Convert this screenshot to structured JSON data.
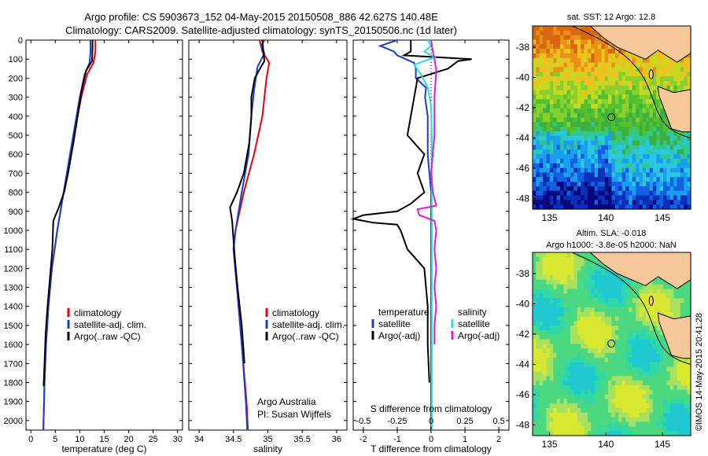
{
  "header": {
    "line1": "Argo profile: CS 5903673_152 04-May-2015 20150508_886 42.627S 140.48E",
    "line2": "Climatology: CARS2009. Satellite-adjusted climatology: synTS_20150506.nc (1d later)"
  },
  "colors": {
    "clim": "#e8000a",
    "sat": "#1a3ccf",
    "argo": "#000000",
    "sat_s": "#22e0e6",
    "argo_s": "#e21ad8"
  },
  "chart_data": [
    {
      "type": "line",
      "panel": "temperature",
      "xlabel": "temperature (deg C)",
      "xlim": [
        -1,
        31
      ],
      "xticks": [
        0,
        5,
        10,
        15,
        20,
        25,
        30
      ],
      "ylim": [
        0,
        2050
      ],
      "yticks": [
        0,
        100,
        200,
        300,
        400,
        500,
        600,
        700,
        800,
        900,
        1000,
        1100,
        1200,
        1300,
        1400,
        1500,
        1600,
        1700,
        1800,
        1900,
        2000
      ],
      "legend": [
        "climatology",
        "satellite-adj. clim.",
        "Argo(..raw -QC)"
      ],
      "series": [
        {
          "name": "climatology",
          "color": "#e8000a",
          "points": [
            [
              13.2,
              0
            ],
            [
              13.2,
              60
            ],
            [
              12.8,
              120
            ],
            [
              11.5,
              180
            ],
            [
              10.3,
              300
            ],
            [
              9.2,
              450
            ],
            [
              8.1,
              600
            ],
            [
              6.7,
              800
            ],
            [
              5.4,
              1000
            ],
            [
              4.3,
              1200
            ],
            [
              3.6,
              1400
            ],
            [
              3.1,
              1600
            ],
            [
              2.8,
              1800
            ],
            [
              2.6,
              2000
            ],
            [
              2.55,
              2050
            ]
          ]
        },
        {
          "name": "satellite-adj. clim.",
          "color": "#1a3ccf",
          "points": [
            [
              12.2,
              0
            ],
            [
              12.2,
              60
            ],
            [
              12.0,
              120
            ],
            [
              11.0,
              180
            ],
            [
              10.0,
              300
            ],
            [
              9.0,
              450
            ],
            [
              8.0,
              600
            ],
            [
              6.7,
              800
            ],
            [
              5.4,
              1000
            ],
            [
              4.3,
              1200
            ],
            [
              3.6,
              1400
            ],
            [
              3.1,
              1600
            ],
            [
              2.8,
              1800
            ],
            [
              2.6,
              2000
            ],
            [
              2.55,
              2050
            ]
          ]
        },
        {
          "name": "Argo(..raw -QC)",
          "color": "#000000",
          "points": [
            [
              12.6,
              0
            ],
            [
              12.6,
              40
            ],
            [
              12.5,
              110
            ],
            [
              11.3,
              160
            ],
            [
              10.4,
              260
            ],
            [
              9.7,
              380
            ],
            [
              8.7,
              540
            ],
            [
              7.6,
              700
            ],
            [
              6.8,
              800
            ],
            [
              5.7,
              880
            ],
            [
              4.6,
              950
            ],
            [
              4.5,
              1020
            ],
            [
              4.4,
              1100
            ],
            [
              3.9,
              1250
            ],
            [
              3.4,
              1400
            ],
            [
              3.0,
              1550
            ],
            [
              2.8,
              1700
            ],
            [
              2.6,
              1820
            ]
          ]
        }
      ],
      "annotations": []
    },
    {
      "type": "line",
      "panel": "salinity",
      "xlabel": "salinity",
      "xlim": [
        33.85,
        36.15
      ],
      "xticks": [
        34,
        34.5,
        35,
        35.5,
        36
      ],
      "ylim": [
        0,
        2050
      ],
      "legend": [
        "climatology",
        "satellite-adj. clim.",
        "Argo(..raw -QC)"
      ],
      "series": [
        {
          "name": "climatology",
          "color": "#e8000a",
          "points": [
            [
              34.88,
              0
            ],
            [
              34.92,
              60
            ],
            [
              35.02,
              120
            ],
            [
              34.98,
              200
            ],
            [
              34.92,
              400
            ],
            [
              34.8,
              600
            ],
            [
              34.65,
              800
            ],
            [
              34.53,
              1000
            ],
            [
              34.5,
              1100
            ],
            [
              34.55,
              1300
            ],
            [
              34.62,
              1600
            ],
            [
              34.69,
              1900
            ],
            [
              34.71,
              2050
            ]
          ]
        },
        {
          "name": "satellite-adj. clim.",
          "color": "#1a3ccf",
          "points": [
            [
              34.95,
              0
            ],
            [
              34.9,
              30
            ],
            [
              34.95,
              70
            ],
            [
              34.85,
              140
            ],
            [
              34.8,
              260
            ],
            [
              34.76,
              400
            ],
            [
              34.72,
              600
            ],
            [
              34.62,
              800
            ],
            [
              34.53,
              1000
            ],
            [
              34.5,
              1100
            ],
            [
              34.55,
              1300
            ],
            [
              34.62,
              1600
            ],
            [
              34.68,
              1900
            ],
            [
              34.7,
              2050
            ]
          ]
        },
        {
          "name": "Argo(..raw -QC)",
          "color": "#000000",
          "points": [
            [
              34.92,
              0
            ],
            [
              34.93,
              40
            ],
            [
              34.95,
              110
            ],
            [
              34.9,
              140
            ],
            [
              34.81,
              200
            ],
            [
              34.76,
              300
            ],
            [
              34.76,
              400
            ],
            [
              34.73,
              540
            ],
            [
              34.65,
              700
            ],
            [
              34.55,
              800
            ],
            [
              34.45,
              880
            ],
            [
              34.48,
              950
            ],
            [
              34.5,
              1050
            ],
            [
              34.52,
              1150
            ],
            [
              34.56,
              1300
            ],
            [
              34.62,
              1500
            ],
            [
              34.66,
              1700
            ]
          ]
        }
      ],
      "annotations": [
        "Argo Australia",
        "PI: Susan Wijffels"
      ]
    },
    {
      "type": "line",
      "panel": "difference",
      "xlabel_top": "S difference from climatology",
      "xticks_top": [
        -0.5,
        -0.25,
        0,
        0.25,
        0.5
      ],
      "xlabel": "T difference from climatology",
      "xlim": [
        -2.3,
        2.3
      ],
      "xticks": [
        -2,
        -1,
        0,
        1,
        2
      ],
      "ylim": [
        0,
        2050
      ],
      "legend_left_title": "temperature",
      "legend_right_title": "salinity",
      "legend": [
        "satellite",
        "Argo(-adj)",
        "satellite",
        "Argo(-adj)"
      ],
      "series": [
        {
          "name": "satellite",
          "group": "temperature",
          "color": "#1a3ccf",
          "points": [
            [
              -1.0,
              0
            ],
            [
              -1.5,
              30
            ],
            [
              -1.1,
              60
            ],
            [
              -1.0,
              80
            ],
            [
              -0.5,
              120
            ],
            [
              -0.45,
              150
            ],
            [
              -0.45,
              200
            ],
            [
              -0.15,
              250
            ],
            [
              -0.18,
              300
            ],
            [
              -0.1,
              400
            ],
            [
              -0.1,
              600
            ],
            [
              0,
              800
            ],
            [
              0,
              1100
            ],
            [
              0,
              1500
            ],
            [
              0,
              1800
            ],
            [
              0,
              2050
            ]
          ]
        },
        {
          "name": "Argo(-adj)",
          "group": "temperature",
          "color": "#000000",
          "points": [
            [
              -0.6,
              0
            ],
            [
              -0.6,
              60
            ],
            [
              -0.8,
              80
            ],
            [
              1.2,
              100
            ],
            [
              0.8,
              110
            ],
            [
              0.5,
              150
            ],
            [
              -0.4,
              200
            ],
            [
              -0.5,
              300
            ],
            [
              -0.6,
              400
            ],
            [
              -0.7,
              500
            ],
            [
              -0.2,
              600
            ],
            [
              -0.4,
              700
            ],
            [
              -0.2,
              800
            ],
            [
              -0.6,
              860
            ],
            [
              -1.0,
              900
            ],
            [
              -2.0,
              920
            ],
            [
              -2.3,
              940
            ],
            [
              -1.7,
              960
            ],
            [
              -1.0,
              970
            ],
            [
              -0.9,
              1000
            ],
            [
              -0.7,
              1100
            ],
            [
              -0.2,
              1200
            ],
            [
              -0.1,
              1400
            ],
            [
              -0.1,
              1600
            ],
            [
              -0.05,
              1800
            ]
          ]
        },
        {
          "name": "satellite",
          "group": "salinity",
          "color": "#22e0e6",
          "points": [
            [
              -0.1,
              0
            ],
            [
              0.0,
              30
            ],
            [
              -0.2,
              60
            ],
            [
              0.1,
              90
            ],
            [
              -0.5,
              130
            ],
            [
              -0.3,
              180
            ],
            [
              -0.1,
              250
            ],
            [
              0.0,
              350
            ],
            [
              0.02,
              500
            ],
            [
              0.02,
              1000
            ],
            [
              0.02,
              1500
            ],
            [
              0.02,
              1900
            ],
            [
              0.02,
              2050
            ]
          ]
        },
        {
          "name": "Argo(-adj)",
          "group": "salinity",
          "color": "#e21ad8",
          "points": [
            [
              0.0,
              0
            ],
            [
              0.05,
              60
            ],
            [
              0.1,
              100
            ],
            [
              0.15,
              160
            ],
            [
              0.1,
              300
            ],
            [
              0.1,
              500
            ],
            [
              0.0,
              700
            ],
            [
              0.05,
              800
            ],
            [
              0.15,
              870
            ],
            [
              -0.4,
              890
            ],
            [
              -0.35,
              920
            ],
            [
              0.1,
              950
            ],
            [
              0.15,
              1000
            ],
            [
              0.1,
              1100
            ],
            [
              0.15,
              1200
            ],
            [
              0.1,
              1300
            ],
            [
              0.15,
              1400
            ],
            [
              0.1,
              1500
            ],
            [
              0.1,
              1600
            ]
          ]
        }
      ],
      "annotations": []
    },
    {
      "type": "heatmap",
      "panel": "sst-map",
      "title": "sat. SST: 12 Argo: 12.8",
      "xticks": [
        135,
        140,
        145
      ],
      "yticks": [
        -38,
        -40,
        -42,
        -44,
        -46,
        -48
      ],
      "xlim": [
        133.5,
        147.5
      ],
      "ylim": [
        -48.7,
        -36.6
      ],
      "marker": [
        140.48,
        -42.627
      ]
    },
    {
      "type": "heatmap",
      "panel": "sla-map",
      "title": "Altim. SLA: -0.018",
      "subtitle": "Argo h1000: -3.8e-05 h2000: NaN",
      "xticks": [
        135,
        140,
        145
      ],
      "yticks": [
        -38,
        -40,
        -42,
        -44,
        -46,
        -48
      ],
      "xlim": [
        133.5,
        147.5
      ],
      "ylim": [
        -48.7,
        -36.6
      ],
      "marker": [
        140.48,
        -42.627
      ]
    }
  ],
  "footer_stamp": "©IMOS 14-May-2015 20:41:28"
}
